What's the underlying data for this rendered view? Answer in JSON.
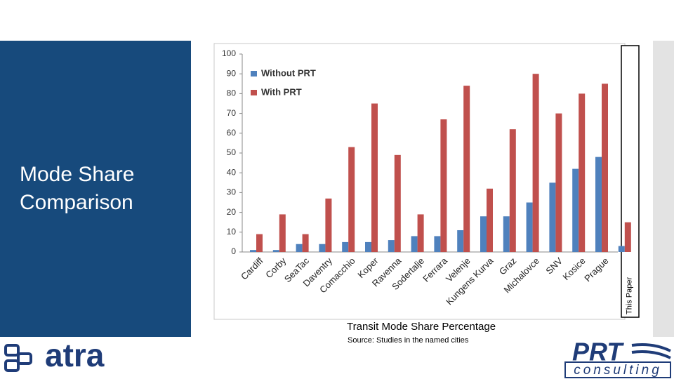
{
  "slide": {
    "title": [
      "Mode Share",
      "Comparison"
    ],
    "caption": "Transit Mode Share Percentage",
    "source": "Source: Studies in the named cities"
  },
  "logos": {
    "left": "atra",
    "right_top": "PRT",
    "right_bottom": "consulting"
  },
  "chart_data": {
    "type": "bar",
    "categories": [
      "Cardiff",
      "Corby",
      "SeaTac",
      "Daventry",
      "Comacchio",
      "Koper",
      "Ravenna",
      "Sodertalje",
      "Ferrara",
      "Velenje",
      "Kungens Kurva",
      "Graz",
      "Michalovce",
      "SNV",
      "Kosice",
      "Prague",
      "This Paper"
    ],
    "series": [
      {
        "name": "Without PRT",
        "color": "#4f81bd",
        "values": [
          1,
          1,
          4,
          4,
          5,
          5,
          6,
          8,
          8,
          11,
          18,
          18,
          25,
          35,
          42,
          48,
          3
        ]
      },
      {
        "name": "With PRT",
        "color": "#c0504d",
        "values": [
          9,
          19,
          9,
          27,
          53,
          75,
          49,
          19,
          67,
          84,
          32,
          62,
          90,
          70,
          80,
          85,
          15
        ]
      }
    ],
    "ylim": [
      0,
      100
    ],
    "yticks": [
      0,
      10,
      20,
      30,
      40,
      50,
      60,
      70,
      80,
      90,
      100
    ],
    "grid": false,
    "legend": "top-left",
    "highlight_last": true
  }
}
